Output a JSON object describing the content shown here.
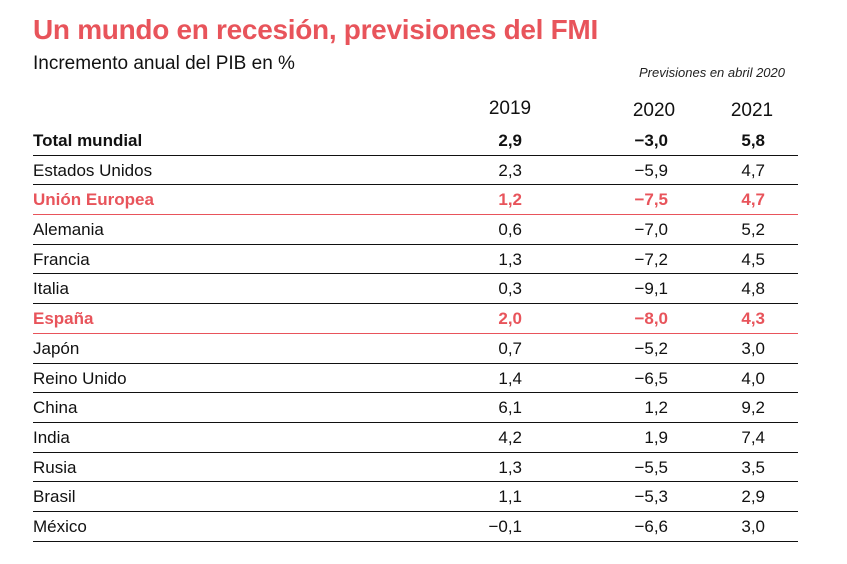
{
  "title": "Un mundo en recesión, previsiones del FMI",
  "subtitle": "Incremento anual del PIB en %",
  "note": "Previsiones en abril 2020",
  "colors": {
    "accent": "#e8545b",
    "text": "#111111"
  },
  "chart_data": {
    "type": "table",
    "title": "Un mundo en recesión, previsiones del FMI",
    "subtitle": "Incremento anual del PIB en %",
    "columns": [
      "2019",
      "2020",
      "2021"
    ],
    "rows": [
      {
        "name": "Total mundial",
        "v2019": "2,9",
        "v2020": "−3,0",
        "v2021": "5,8",
        "style": "total"
      },
      {
        "name": "Estados Unidos",
        "v2019": "2,3",
        "v2020": "−5,9",
        "v2021": "4,7",
        "style": "normal"
      },
      {
        "name": "Unión Europea",
        "v2019": "1,2",
        "v2020": "−7,5",
        "v2021": "4,7",
        "style": "highlight"
      },
      {
        "name": "Alemania",
        "v2019": "0,6",
        "v2020": "−7,0",
        "v2021": "5,2",
        "style": "normal"
      },
      {
        "name": "Francia",
        "v2019": "1,3",
        "v2020": "−7,2",
        "v2021": "4,5",
        "style": "normal"
      },
      {
        "name": "Italia",
        "v2019": "0,3",
        "v2020": "−9,1",
        "v2021": "4,8",
        "style": "normal"
      },
      {
        "name": "España",
        "v2019": "2,0",
        "v2020": "−8,0",
        "v2021": "4,3",
        "style": "highlight"
      },
      {
        "name": "Japón",
        "v2019": "0,7",
        "v2020": "−5,2",
        "v2021": "3,0",
        "style": "normal"
      },
      {
        "name": "Reino Unido",
        "v2019": "1,4",
        "v2020": "−6,5",
        "v2021": "4,0",
        "style": "normal"
      },
      {
        "name": "China",
        "v2019": "6,1",
        "v2020": "1,2",
        "v2021": "9,2",
        "style": "normal"
      },
      {
        "name": "India",
        "v2019": "4,2",
        "v2020": "1,9",
        "v2021": "7,4",
        "style": "normal"
      },
      {
        "name": "Rusia",
        "v2019": "1,3",
        "v2020": "−5,5",
        "v2021": "3,5",
        "style": "normal"
      },
      {
        "name": "Brasil",
        "v2019": "1,1",
        "v2020": "−5,3",
        "v2021": "2,9",
        "style": "normal"
      },
      {
        "name": "México",
        "v2019": "−0,1",
        "v2020": "−6,6",
        "v2021": "3,0",
        "style": "normal"
      }
    ]
  }
}
